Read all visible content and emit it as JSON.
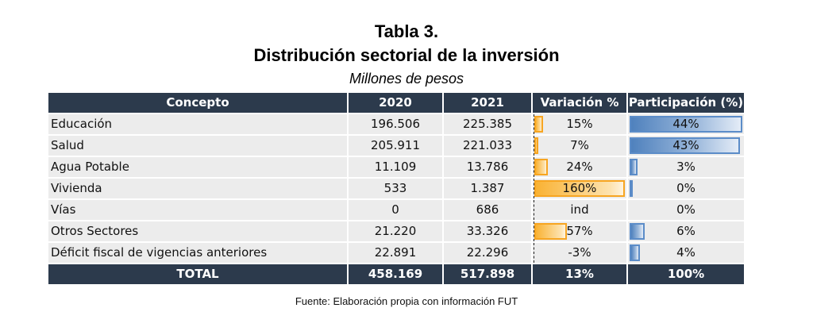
{
  "title": {
    "line1": "Tabla 3.",
    "line2": "Distribución sectorial de la inversión",
    "subtitle": "Millones de pesos"
  },
  "table": {
    "headers": [
      "Concepto",
      "2020",
      "2021",
      "Variación %",
      "Participación (%)"
    ],
    "rows": [
      {
        "concepto": "Educación",
        "y2020": "196.506",
        "y2021": "225.385",
        "variacion": "15%",
        "variacion_value": 15,
        "participacion": "44%",
        "participacion_value": 44
      },
      {
        "concepto": "Salud",
        "y2020": "205.911",
        "y2021": "221.033",
        "variacion": "7%",
        "variacion_value": 7,
        "participacion": "43%",
        "participacion_value": 43
      },
      {
        "concepto": "Agua Potable",
        "y2020": "11.109",
        "y2021": "13.786",
        "variacion": "24%",
        "variacion_value": 24,
        "participacion": "3%",
        "participacion_value": 3
      },
      {
        "concepto": "Vivienda",
        "y2020": "533",
        "y2021": "1.387",
        "variacion": "160%",
        "variacion_value": 160,
        "participacion": "0%",
        "participacion_value": 0.3
      },
      {
        "concepto": "Vías",
        "y2020": "0",
        "y2021": "686",
        "variacion": "ind",
        "variacion_value": null,
        "participacion": "0%",
        "participacion_value": 0
      },
      {
        "concepto": "Otros Sectores",
        "y2020": "21.220",
        "y2021": "33.326",
        "variacion": "57%",
        "variacion_value": 57,
        "participacion": "6%",
        "participacion_value": 6
      },
      {
        "concepto": "Déficit fiscal de vigencias anteriores",
        "y2020": "22.891",
        "y2021": "22.296",
        "variacion": "-3%",
        "variacion_value": -3,
        "participacion": "4%",
        "participacion_value": 4
      }
    ],
    "total": {
      "concepto": "TOTAL",
      "y2020": "458.169",
      "y2021": "517.898",
      "variacion": "13%",
      "participacion": "100%"
    },
    "variacion_bar_max": 160,
    "participacion_bar_max": 44
  },
  "colors": {
    "header_bg": "#2c3a4c",
    "row_bg": "#ececec",
    "variacion_bar": "#f9b233",
    "participacion_bar": "#4f81bd"
  },
  "source": "Fuente: Elaboración propia con información FUT"
}
